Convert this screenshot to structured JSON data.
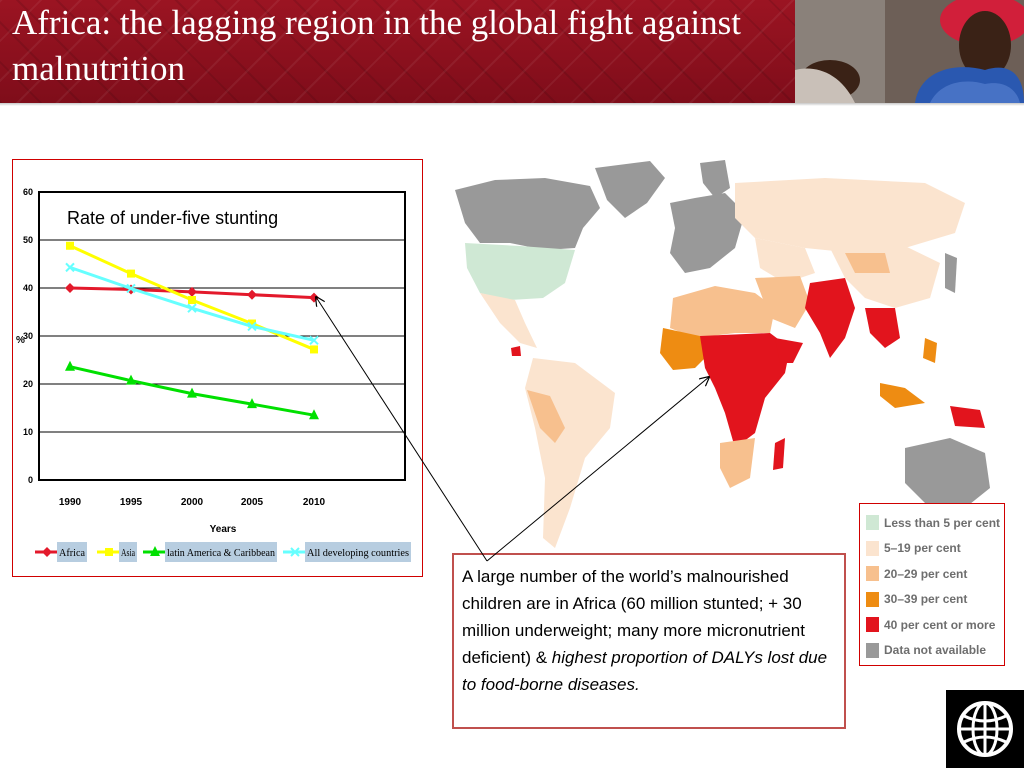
{
  "slide": {
    "title": "Africa: the lagging region in the global fight against  malnutrition"
  },
  "chart_data": {
    "type": "line",
    "title": "Rate of under-five stunting",
    "xlabel": "Years",
    "ylabel": "%",
    "x": [
      "1990",
      "1995",
      "2000",
      "2005",
      "2010"
    ],
    "ylim": [
      0,
      60
    ],
    "yticks": [
      0,
      10,
      20,
      30,
      40,
      50,
      60
    ],
    "grid": true,
    "legend_position": "bottom",
    "series": [
      {
        "name": "Africa",
        "values": [
          40.0,
          39.7,
          39.2,
          38.6,
          38.0
        ],
        "color": "#e3192b",
        "marker": "diamond"
      },
      {
        "name": "Asia",
        "values": [
          48.8,
          43.0,
          37.5,
          32.6,
          27.2
        ],
        "color": "#ffff00",
        "marker": "square"
      },
      {
        "name": "latin America & Caribbean",
        "values": [
          23.6,
          20.7,
          18.0,
          15.8,
          13.5
        ],
        "color": "#00e000",
        "marker": "triangle"
      },
      {
        "name": "All developing countries",
        "values": [
          44.3,
          39.9,
          35.8,
          32.0,
          29.1
        ],
        "color": "#66ffff",
        "marker": "x"
      }
    ]
  },
  "callout": {
    "text_plain": "A large number of the world’s malnourished children are in Africa (60 million stunted; + 30 million underweight; many more micronutrient deficient) & ",
    "text_italic": "highest proportion of DALYs lost due to food-borne diseases."
  },
  "map_legend": [
    {
      "label": "Less than 5 per cent",
      "color": "#cfe8d4"
    },
    {
      "label": "5–19 per cent",
      "color": "#fbe4cf"
    },
    {
      "label": "20–29 per cent",
      "color": "#f7c08e"
    },
    {
      "label": "30–39 per cent",
      "color": "#ee8c12"
    },
    {
      "label": "40 per cent or more",
      "color": "#e2141d"
    },
    {
      "label": "Data not available",
      "color": "#999999"
    }
  ]
}
